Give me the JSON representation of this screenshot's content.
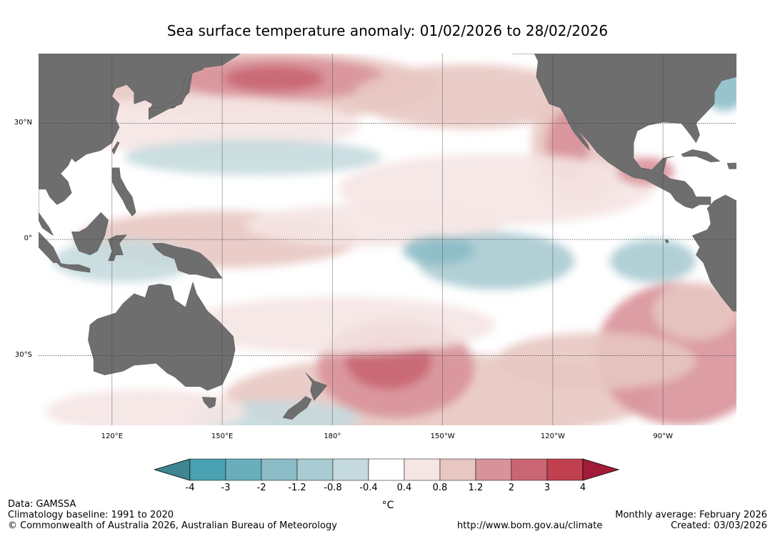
{
  "title": "Sea surface temperature anomaly: 01/02/2026 to 28/02/2026",
  "map": {
    "lat_labels": [
      {
        "label": "30°N",
        "lat": 30
      },
      {
        "label": "0°",
        "lat": 0
      },
      {
        "label": "30°S",
        "lat": -30
      }
    ],
    "lon_labels": [
      {
        "label": "120°E",
        "lon": 120
      },
      {
        "label": "150°E",
        "lon": 150
      },
      {
        "label": "180°",
        "lon": 180
      },
      {
        "label": "150°W",
        "lon": 210
      },
      {
        "label": "120°W",
        "lon": 240
      },
      {
        "label": "90°W",
        "lon": 270
      }
    ],
    "extent": {
      "lon_min": 100,
      "lon_max": 290,
      "lat_min": -48,
      "lat_max": 48
    },
    "land_color": "#6e6e6e",
    "grid_color": "#444444"
  },
  "colorbar": {
    "ticks": [
      "-4",
      "-3",
      "-2",
      "-1.2",
      "-0.8",
      "-0.4",
      "0.4",
      "0.8",
      "1.2",
      "2",
      "3",
      "4"
    ],
    "colors": [
      "#3c8591",
      "#49a1b1",
      "#6aaebc",
      "#8cbcc6",
      "#a9cbd2",
      "#c5dade",
      "#ffffff",
      "#f5e6e4",
      "#e8c6c2",
      "#d8929a",
      "#ca6673",
      "#c0404f",
      "#a01c39"
    ],
    "unit": "°C"
  },
  "footer": {
    "data_source": "Data: GAMSSA",
    "baseline": "Climatology baseline: 1991 to 2020",
    "copyright": "© Commonwealth of Australia 2026, Australian Bureau of Meteorology",
    "url": "http://www.bom.gov.au/climate",
    "period": "Monthly average: February 2026",
    "created": "Created: 03/03/2026"
  }
}
